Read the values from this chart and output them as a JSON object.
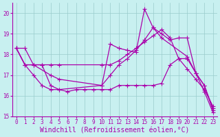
{
  "background_color": "#c8f0f0",
  "line_color": "#aa00aa",
  "grid_color": "#99cccc",
  "xlabel": "Windchill (Refroidissement éolien,°C)",
  "xlim": [
    -0.5,
    23.5
  ],
  "ylim": [
    15,
    20.5
  ],
  "yticks": [
    15,
    16,
    17,
    18,
    19,
    20
  ],
  "xticks": [
    0,
    1,
    2,
    3,
    4,
    5,
    6,
    7,
    8,
    9,
    10,
    11,
    12,
    13,
    14,
    15,
    16,
    17,
    18,
    19,
    20,
    21,
    22,
    23
  ],
  "lines": [
    {
      "x": [
        0,
        1,
        2,
        4,
        5,
        10,
        11,
        12,
        13,
        14,
        15,
        16,
        17,
        20,
        21,
        22,
        23
      ],
      "y": [
        18.3,
        18.3,
        17.5,
        17.0,
        16.8,
        16.5,
        18.5,
        18.3,
        18.2,
        18.1,
        20.2,
        19.3,
        18.8,
        17.9,
        17.1,
        16.2,
        15.2
      ]
    },
    {
      "x": [
        0,
        1,
        2,
        3,
        4,
        5,
        10,
        11,
        12,
        13,
        14,
        15,
        16,
        17,
        18,
        19,
        20,
        21,
        22,
        23
      ],
      "y": [
        18.3,
        17.5,
        17.5,
        17.5,
        16.5,
        16.3,
        16.5,
        17.0,
        17.5,
        17.8,
        18.2,
        18.7,
        19.3,
        19.0,
        18.7,
        18.8,
        18.8,
        17.1,
        16.5,
        15.3
      ]
    },
    {
      "x": [
        0,
        1,
        2,
        3,
        4,
        5,
        10,
        11,
        12,
        13,
        14,
        15,
        16,
        17,
        18,
        19,
        20,
        21,
        22,
        23
      ],
      "y": [
        18.3,
        17.5,
        17.5,
        17.5,
        17.5,
        17.5,
        17.5,
        17.5,
        17.7,
        18.0,
        18.3,
        18.6,
        18.9,
        19.2,
        18.8,
        17.8,
        17.3,
        16.8,
        16.3,
        15.5
      ]
    },
    {
      "x": [
        0,
        1,
        2,
        3,
        4,
        5,
        6,
        7,
        8,
        9,
        10,
        11,
        12,
        13,
        14,
        15,
        16,
        17,
        18,
        19,
        20,
        21,
        22,
        23
      ],
      "y": [
        18.3,
        17.5,
        17.0,
        16.5,
        16.3,
        16.3,
        16.2,
        16.3,
        16.3,
        16.3,
        16.3,
        16.3,
        16.5,
        16.5,
        16.5,
        16.5,
        16.5,
        16.6,
        17.5,
        17.8,
        17.8,
        17.1,
        16.5,
        15.4
      ]
    }
  ],
  "tick_fontsize": 5.5,
  "label_fontsize": 7,
  "marker_size": 2.5,
  "linewidth": 0.9
}
